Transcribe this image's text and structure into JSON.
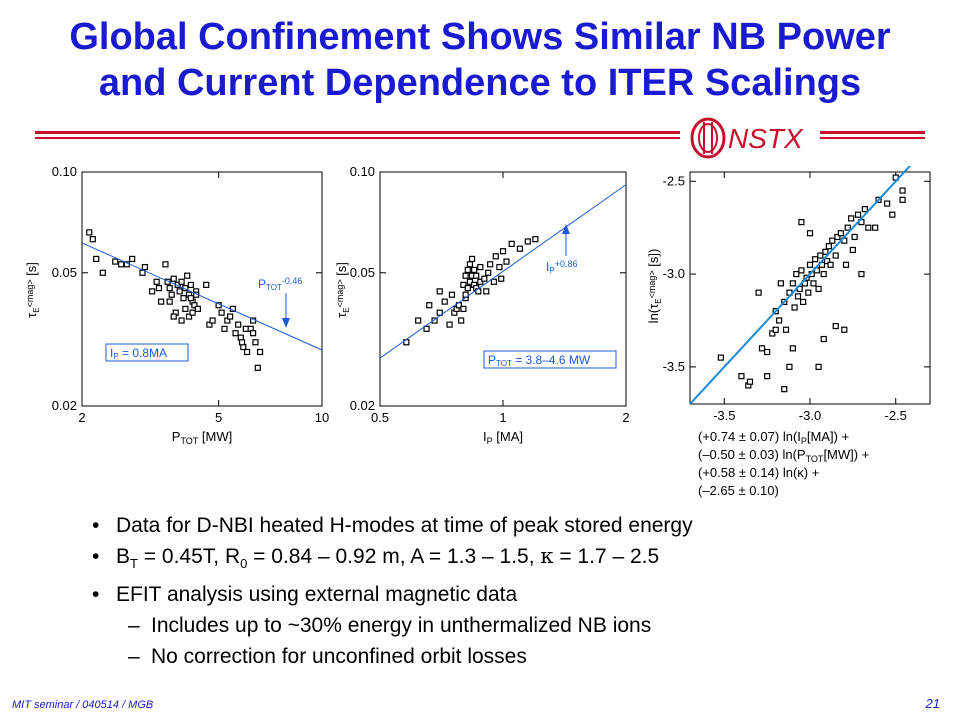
{
  "slide": {
    "title_line1": "Global Confinement Shows Similar NB Power",
    "title_line2": "and Current Dependence to ITER Scalings",
    "logo_text": "NSTX",
    "footer": "MIT seminar / 040514 / MGB",
    "page_number": "21"
  },
  "colors": {
    "title": "#1a1ad0",
    "rule": "#c8102e",
    "fit_line": "#1a8ad4"
  },
  "bullets": [
    {
      "level": 1,
      "text": "Data for D-NBI heated H-modes at time of peak stored energy"
    },
    {
      "level": 1,
      "parts": [
        "B",
        "T",
        " = 0.45T, R",
        "0",
        " = 0.84 – 0.92 m, A = 1.3 – 1.5, ",
        "κ",
        " = 1.7 – 2.5"
      ]
    },
    {
      "level": 1,
      "text": "EFIT analysis using external magnetic data"
    },
    {
      "level": 2,
      "text": "Includes up to ~30% energy in unthermalized NB ions"
    },
    {
      "level": 2,
      "text": "No correction for unconfined orbit losses"
    }
  ],
  "chart_data": [
    {
      "type": "scatter",
      "xlabel": "P_TOT [MW]",
      "ylabel": "τ_E<mag> [s]",
      "xscale": "log",
      "yscale": "log",
      "xlim": [
        2,
        10
      ],
      "ylim": [
        0.02,
        0.1
      ],
      "xticks": [
        "2",
        "5",
        "10"
      ],
      "yticks": [
        "0.02",
        "0.05",
        "0.10"
      ],
      "fit_label_base": "P",
      "fit_label_sub": "TOT",
      "fit_label_exp": "-0.46",
      "box_label_base": "I",
      "box_label_sub": "P",
      "box_label_rest": " = 0.8MA",
      "fit": {
        "slope": -0.46,
        "x": [
          2,
          10
        ],
        "y": [
          0.0614,
          0.0294
        ]
      },
      "x": [
        2.1,
        2.15,
        2.3,
        2.2,
        2.5,
        2.6,
        2.8,
        2.7,
        3.0,
        3.05,
        3.2,
        3.3,
        3.4,
        3.35,
        3.5,
        3.55,
        3.6,
        3.65,
        3.7,
        3.8,
        3.85,
        3.9,
        3.95,
        4.0,
        4.05,
        4.1,
        4.15,
        4.2,
        4.25,
        4.3,
        3.75,
        3.9,
        4.0,
        4.1,
        4.2,
        4.3,
        3.6,
        3.7,
        4.15,
        4.35,
        4.6,
        4.7,
        4.8,
        5.0,
        5.1,
        5.2,
        5.3,
        5.4,
        5.5,
        5.6,
        5.7,
        5.8,
        5.9,
        6.0,
        5.85,
        6.05,
        6.2,
        6.3,
        6.4,
        6.6,
        6.5,
        6.3
      ],
      "y": [
        0.066,
        0.063,
        0.05,
        0.055,
        0.054,
        0.053,
        0.055,
        0.053,
        0.05,
        0.052,
        0.044,
        0.047,
        0.041,
        0.045,
        0.053,
        0.047,
        0.045,
        0.043,
        0.048,
        0.046,
        0.044,
        0.047,
        0.042,
        0.045,
        0.049,
        0.043,
        0.046,
        0.041,
        0.04,
        0.044,
        0.038,
        0.036,
        0.039,
        0.037,
        0.038,
        0.043,
        0.041,
        0.037,
        0.042,
        0.039,
        0.046,
        0.035,
        0.036,
        0.04,
        0.038,
        0.034,
        0.036,
        0.037,
        0.039,
        0.033,
        0.035,
        0.032,
        0.03,
        0.034,
        0.031,
        0.029,
        0.034,
        0.033,
        0.031,
        0.029,
        0.026,
        0.036
      ]
    },
    {
      "type": "scatter",
      "xlabel": "I_P [MA]",
      "ylabel": "τ_E<mag> [s]",
      "xscale": "log",
      "yscale": "log",
      "xlim": [
        0.5,
        2
      ],
      "ylim": [
        0.02,
        0.1
      ],
      "xticks": [
        "0.5",
        "1",
        "2"
      ],
      "yticks": [
        "0.02",
        "0.05",
        "0.10"
      ],
      "fit_label_base": "I",
      "fit_label_sub": "P",
      "fit_label_exp": "+0.86",
      "box_label_base": "P",
      "box_label_sub": "TOT",
      "box_label_rest": " = 3.8–4.6 MW",
      "fit": {
        "slope": 0.86,
        "x": [
          0.5,
          2
        ],
        "y": [
          0.0278,
          0.0917
        ]
      },
      "x": [
        0.58,
        0.62,
        0.65,
        0.66,
        0.68,
        0.7,
        0.7,
        0.72,
        0.74,
        0.75,
        0.76,
        0.77,
        0.78,
        0.79,
        0.8,
        0.8,
        0.81,
        0.81,
        0.81,
        0.82,
        0.82,
        0.83,
        0.83,
        0.84,
        0.84,
        0.85,
        0.85,
        0.86,
        0.86,
        0.87,
        0.88,
        0.88,
        0.9,
        0.91,
        0.92,
        0.93,
        0.95,
        0.96,
        0.98,
        0.99,
        1.0,
        1.02,
        1.05,
        1.1,
        1.15,
        1.2
      ],
      "y": [
        0.031,
        0.036,
        0.034,
        0.04,
        0.036,
        0.044,
        0.038,
        0.041,
        0.035,
        0.043,
        0.038,
        0.039,
        0.04,
        0.036,
        0.046,
        0.039,
        0.042,
        0.049,
        0.043,
        0.051,
        0.045,
        0.047,
        0.053,
        0.049,
        0.055,
        0.046,
        0.051,
        0.049,
        0.045,
        0.044,
        0.047,
        0.052,
        0.048,
        0.044,
        0.05,
        0.053,
        0.047,
        0.056,
        0.052,
        0.048,
        0.058,
        0.054,
        0.061,
        0.059,
        0.062,
        0.063
      ]
    },
    {
      "type": "scatter",
      "xlabel_lines": [
        "(+0.74 ± 0.07) ln(I_P[MA]) +",
        "(–0.50 ± 0.03) ln(P_TOT[MW]) +",
        "(+0.58 ± 0.14) ln(κ) +",
        "(–2.65 ± 0.10)"
      ],
      "ylabel": "ln(τ_E<mag> [s])",
      "xlim": [
        -3.7,
        -2.3
      ],
      "ylim": [
        -3.7,
        -2.45
      ],
      "xticks": [
        "-3.5",
        "-3.0",
        "-2.5"
      ],
      "yticks": [
        "-2.5",
        "-3.0",
        "-3.5"
      ],
      "fit": {
        "x": [
          -3.7,
          -2.3
        ],
        "y": [
          -3.7,
          -2.3
        ]
      },
      "x": [
        -3.52,
        -3.4,
        -3.36,
        -3.28,
        -3.3,
        -3.22,
        -3.2,
        -3.18,
        -3.17,
        -3.15,
        -3.14,
        -3.12,
        -3.1,
        -3.09,
        -3.08,
        -3.07,
        -3.06,
        -3.05,
        -3.04,
        -3.03,
        -3.02,
        -3.01,
        -3.0,
        -2.99,
        -2.98,
        -2.97,
        -2.96,
        -2.95,
        -2.94,
        -2.93,
        -2.92,
        -2.91,
        -2.9,
        -2.89,
        -2.88,
        -2.87,
        -2.85,
        -2.84,
        -2.82,
        -2.8,
        -2.78,
        -2.76,
        -2.74,
        -2.72,
        -2.7,
        -2.68,
        -2.66,
        -2.6,
        -2.55,
        -2.5,
        -2.46,
        -2.46,
        -2.52,
        -2.62,
        -2.7,
        -2.75,
        -2.79,
        -2.92,
        -2.95,
        -3.1,
        -3.12,
        -3.2,
        -3.25,
        -3.05,
        -3.0,
        -2.85,
        -2.8,
        -3.15,
        -3.25,
        -3.35
      ],
      "y": [
        -3.45,
        -3.55,
        -3.6,
        -3.4,
        -3.1,
        -3.32,
        -3.2,
        -3.25,
        -3.05,
        -3.15,
        -3.3,
        -3.1,
        -3.05,
        -3.18,
        -3.0,
        -3.12,
        -3.08,
        -2.98,
        -3.15,
        -3.05,
        -3.02,
        -3.1,
        -2.95,
        -3.0,
        -3.05,
        -2.92,
        -2.98,
        -3.08,
        -2.9,
        -2.95,
        -3.0,
        -2.88,
        -2.93,
        -2.85,
        -2.95,
        -2.82,
        -2.9,
        -2.8,
        -2.78,
        -2.82,
        -2.75,
        -2.7,
        -2.8,
        -2.68,
        -2.72,
        -2.65,
        -2.75,
        -2.6,
        -2.62,
        -2.48,
        -2.6,
        -2.55,
        -2.68,
        -2.75,
        -3.0,
        -2.87,
        -2.95,
        -3.35,
        -3.5,
        -3.4,
        -3.5,
        -3.3,
        -3.42,
        -2.72,
        -2.78,
        -3.28,
        -3.3,
        -3.62,
        -3.55,
        -3.58
      ]
    }
  ]
}
